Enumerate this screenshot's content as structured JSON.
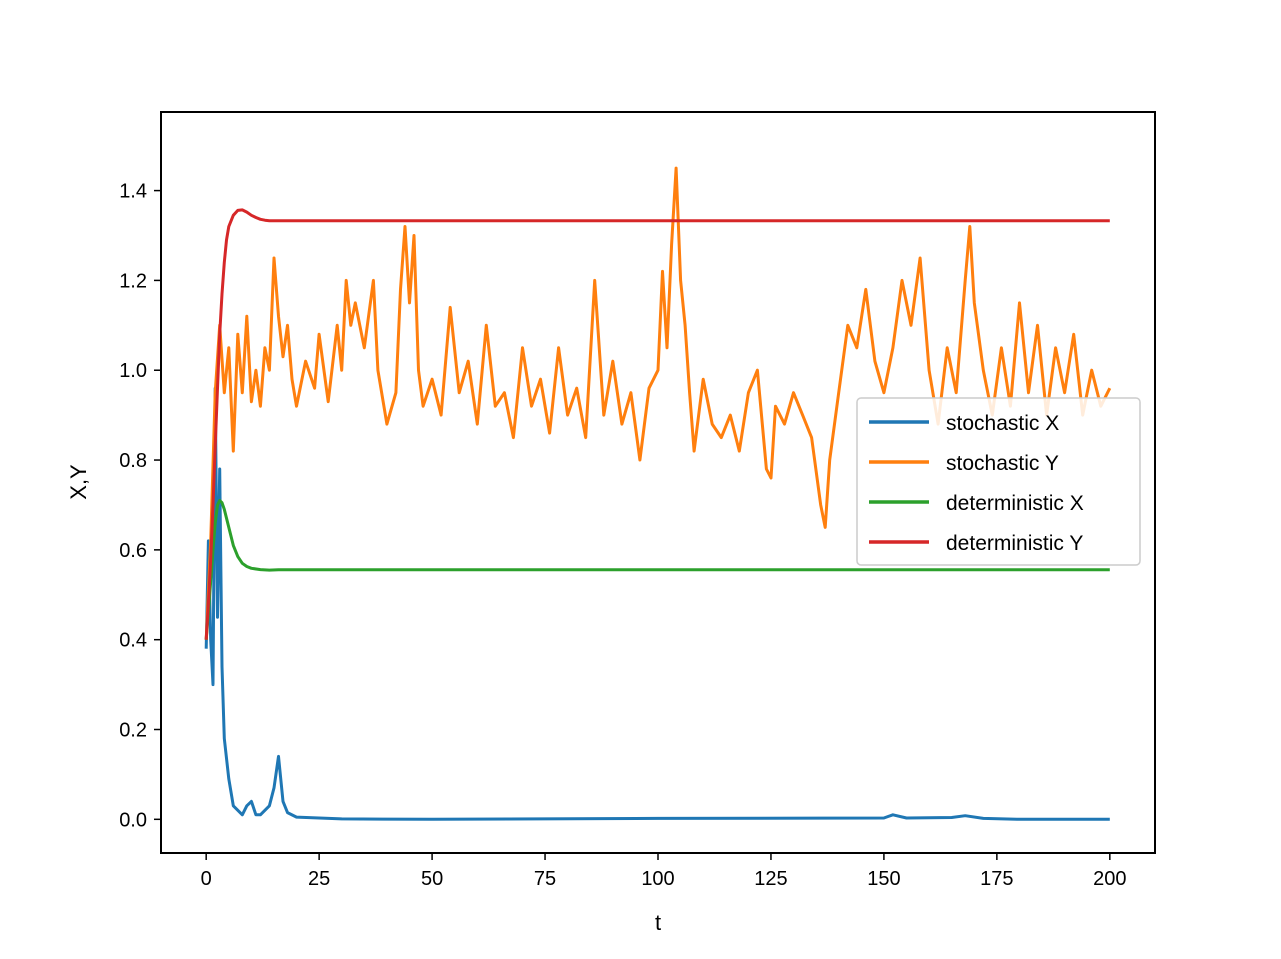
{
  "chart_data": {
    "type": "line",
    "title": "",
    "xlabel": "t",
    "ylabel": "X,Y",
    "xlim": [
      -10,
      210
    ],
    "ylim": [
      -0.075,
      1.575
    ],
    "xticks": [
      0,
      25,
      50,
      75,
      100,
      125,
      150,
      175,
      200
    ],
    "xtick_labels": [
      "0",
      "25",
      "50",
      "75",
      "100",
      "125",
      "150",
      "175",
      "200"
    ],
    "yticks": [
      0.0,
      0.2,
      0.4,
      0.6,
      0.8,
      1.0,
      1.2,
      1.4
    ],
    "ytick_labels": [
      "0.0",
      "0.2",
      "0.4",
      "0.6",
      "0.8",
      "1.0",
      "1.2",
      "1.4"
    ],
    "grid": false,
    "legend_position": "center-right",
    "series": [
      {
        "name": "stochastic X",
        "color": "#1f77b4",
        "x": [
          0,
          0.5,
          1,
          1.5,
          2,
          2.5,
          3,
          3.5,
          4,
          5,
          6,
          8,
          9,
          10,
          11,
          12,
          14,
          15,
          16,
          17,
          18,
          20,
          25,
          30,
          50,
          100,
          150,
          152,
          155,
          165,
          168,
          172,
          180,
          200
        ],
        "y": [
          0.38,
          0.62,
          0.4,
          0.3,
          0.96,
          0.45,
          0.78,
          0.34,
          0.18,
          0.09,
          0.03,
          0.01,
          0.03,
          0.04,
          0.01,
          0.01,
          0.03,
          0.07,
          0.14,
          0.04,
          0.015,
          0.005,
          0.003,
          0.001,
          0.0,
          0.002,
          0.003,
          0.01,
          0.003,
          0.004,
          0.008,
          0.002,
          0.0,
          0.0
        ]
      },
      {
        "name": "stochastic Y",
        "color": "#ff7f0e",
        "x": [
          0,
          1,
          2,
          3,
          4,
          5,
          6,
          7,
          8,
          9,
          10,
          11,
          12,
          13,
          14,
          15,
          16,
          17,
          18,
          19,
          20,
          22,
          24,
          25,
          27,
          29,
          30,
          31,
          32,
          33,
          35,
          37,
          38,
          40,
          42,
          43,
          44,
          45,
          46,
          47,
          48,
          50,
          52,
          54,
          56,
          58,
          60,
          62,
          64,
          66,
          68,
          70,
          72,
          74,
          76,
          78,
          80,
          82,
          84,
          86,
          88,
          90,
          92,
          94,
          96,
          98,
          100,
          101,
          102,
          103,
          104,
          105,
          106,
          107,
          108,
          110,
          112,
          114,
          116,
          118,
          120,
          122,
          124,
          125,
          126,
          128,
          130,
          132,
          134,
          136,
          137,
          138,
          140,
          142,
          144,
          146,
          148,
          150,
          152,
          154,
          156,
          158,
          160,
          162,
          164,
          166,
          168,
          169,
          170,
          172,
          174,
          176,
          178,
          180,
          182,
          184,
          186,
          188,
          190,
          192,
          194,
          196,
          198,
          200
        ],
        "y": [
          0.4,
          0.62,
          0.95,
          1.1,
          0.95,
          1.05,
          0.82,
          1.08,
          0.95,
          1.12,
          0.93,
          1.0,
          0.92,
          1.05,
          1.0,
          1.25,
          1.12,
          1.03,
          1.1,
          0.98,
          0.92,
          1.02,
          0.96,
          1.08,
          0.93,
          1.1,
          1.0,
          1.2,
          1.1,
          1.15,
          1.05,
          1.2,
          1.0,
          0.88,
          0.95,
          1.18,
          1.32,
          1.15,
          1.3,
          1.0,
          0.92,
          0.98,
          0.9,
          1.14,
          0.95,
          1.02,
          0.88,
          1.1,
          0.92,
          0.95,
          0.85,
          1.05,
          0.92,
          0.98,
          0.86,
          1.05,
          0.9,
          0.96,
          0.85,
          1.2,
          0.9,
          1.02,
          0.88,
          0.95,
          0.8,
          0.96,
          1.0,
          1.22,
          1.05,
          1.28,
          1.45,
          1.2,
          1.1,
          0.95,
          0.82,
          0.98,
          0.88,
          0.85,
          0.9,
          0.82,
          0.95,
          1.0,
          0.78,
          0.76,
          0.92,
          0.88,
          0.95,
          0.9,
          0.85,
          0.7,
          0.65,
          0.8,
          0.95,
          1.1,
          1.05,
          1.18,
          1.02,
          0.95,
          1.05,
          1.2,
          1.1,
          1.25,
          1.0,
          0.88,
          1.05,
          0.95,
          1.2,
          1.32,
          1.15,
          1.0,
          0.9,
          1.05,
          0.92,
          1.15,
          0.95,
          1.1,
          0.9,
          1.05,
          0.95,
          1.08,
          0.9,
          1.0,
          0.92,
          0.96
        ]
      },
      {
        "name": "deterministic X",
        "color": "#2ca02c",
        "x": [
          0,
          0.5,
          1,
          1.5,
          2,
          2.5,
          3,
          3.5,
          4,
          5,
          6,
          7,
          8,
          9,
          10,
          12,
          14,
          16,
          20,
          30,
          50,
          100,
          150,
          200
        ],
        "y": [
          0.4,
          0.46,
          0.53,
          0.6,
          0.66,
          0.7,
          0.71,
          0.705,
          0.69,
          0.65,
          0.61,
          0.585,
          0.57,
          0.563,
          0.559,
          0.556,
          0.555,
          0.5555,
          0.5556,
          0.5556,
          0.5556,
          0.5556,
          0.5556,
          0.5556
        ]
      },
      {
        "name": "deterministic Y",
        "color": "#d62728",
        "x": [
          0,
          0.5,
          1,
          1.5,
          2,
          2.5,
          3,
          3.5,
          4,
          4.5,
          5,
          6,
          7,
          8,
          9,
          10,
          11,
          12,
          13,
          14,
          16,
          20,
          30,
          50,
          100,
          150,
          200
        ],
        "y": [
          0.4,
          0.48,
          0.58,
          0.7,
          0.83,
          0.96,
          1.08,
          1.17,
          1.24,
          1.29,
          1.32,
          1.345,
          1.356,
          1.357,
          1.352,
          1.345,
          1.34,
          1.336,
          1.334,
          1.333,
          1.333,
          1.333,
          1.333,
          1.333,
          1.333,
          1.333,
          1.333
        ]
      }
    ]
  }
}
